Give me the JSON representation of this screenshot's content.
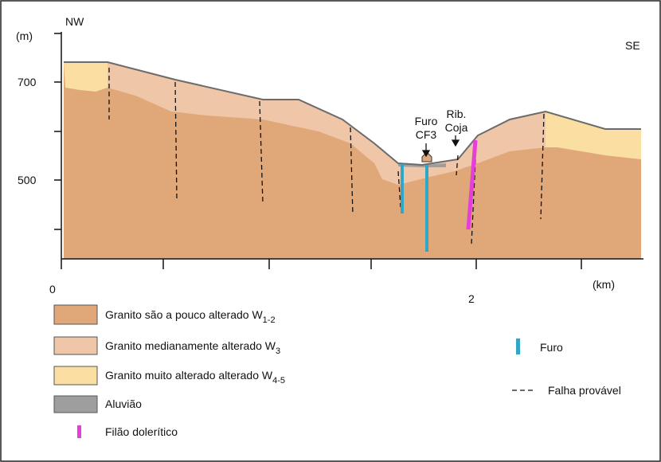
{
  "section": {
    "left_end": "NW",
    "right_end": "SE"
  },
  "axes": {
    "y_unit": "(m)",
    "y_labels": [
      "700",
      "500"
    ],
    "x_labels": [
      "0",
      "2"
    ],
    "x_unit": "(km)"
  },
  "annotations": {
    "borehole": [
      "Furo",
      "CF3"
    ],
    "stream": [
      "Rib.",
      "Coja"
    ]
  },
  "legend": {
    "units": [
      {
        "label": "Granito são a pouco alterado W",
        "subscript": "1-2"
      },
      {
        "label": "Granito medianamente alterado W",
        "subscript": "3"
      },
      {
        "label": "Granito muito alterado alterado W",
        "subscript": "4-5"
      },
      {
        "label": "Aluvião"
      },
      {
        "label": "Filão dolerítico"
      }
    ],
    "symbols": [
      {
        "label": "Furo"
      },
      {
        "label": "Falha provável"
      }
    ]
  }
}
